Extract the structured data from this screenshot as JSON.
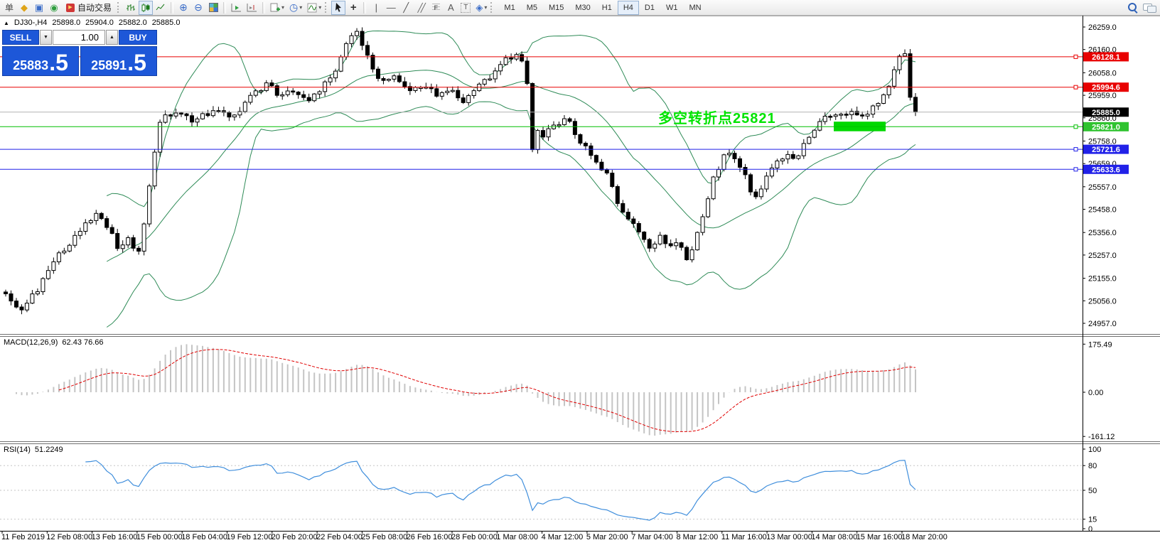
{
  "window": {
    "collapse_arrow": "▲",
    "symbol_period": "DJ30-,H4",
    "ohlc": {
      "open": "25898.0",
      "high": "25904.0",
      "low": "25882.0",
      "close": "25885.0"
    }
  },
  "toolbar": {
    "new_order_label": "单",
    "auto_trading_label": "自动交易",
    "icons": {
      "book": "◆",
      "terminal": "▣",
      "signals": "◉",
      "autoplay": "▶",
      "zoom_in": "⊕",
      "zoom_out": "⊖",
      "profiles": "◷",
      "crosshair": "+",
      "vline": "|",
      "hline": "—",
      "tline": "╱",
      "channel": "╱╱",
      "fibo": "F",
      "text": "A",
      "label": "T",
      "shapes": "◈",
      "caret": "▾",
      "spinner_down": "▼",
      "spinner_up": "▲"
    },
    "timeframes": {
      "items": [
        "M1",
        "M5",
        "M15",
        "M30",
        "H1",
        "H4",
        "D1",
        "W1",
        "MN"
      ],
      "active": "H4"
    }
  },
  "trade_panel": {
    "sell_label": "SELL",
    "buy_label": "BUY",
    "volume": "1.00",
    "sell_price_main": "25883",
    "sell_price_big": ".5",
    "buy_price_main": "25891",
    "buy_price_big": ".5"
  },
  "annotation": {
    "text": "多空转折点25821",
    "color": "#00e400"
  },
  "indicators": {
    "macd": {
      "label": "MACD(12,26,9)",
      "values": "62.43 76.66"
    },
    "rsi": {
      "label": "RSI(14)",
      "value": "51.2249"
    }
  },
  "axes": {
    "price_ticks": [
      "26259.0",
      "26160.0",
      "26058.0",
      "25959.0",
      "25860.0",
      "25758.0",
      "25659.0",
      "25557.0",
      "25458.0",
      "25356.0",
      "25257.0",
      "25155.0",
      "25056.0",
      "24957.0"
    ],
    "macd_ticks": [
      {
        "label": "175.49",
        "value": 175.49
      },
      {
        "label": "0.00",
        "value": 0
      },
      {
        "label": "-161.12",
        "value": -161.12
      }
    ],
    "rsi_ticks": [
      {
        "label": "100",
        "value": 100
      },
      {
        "label": "80",
        "value": 80
      },
      {
        "label": "50",
        "value": 50
      },
      {
        "label": "15",
        "value": 15
      },
      {
        "label": "0",
        "value": 0
      }
    ],
    "time_labels": [
      "11 Feb 2019",
      "12 Feb 08:00",
      "13 Feb 16:00",
      "15 Feb 00:00",
      "18 Feb 04:00",
      "19 Feb 12:00",
      "20 Feb 20:00",
      "22 Feb 04:00",
      "25 Feb 08:00",
      "26 Feb 16:00",
      "28 Feb 00:00",
      "1 Mar 08:00",
      "4 Mar 12:00",
      "5 Mar 20:00",
      "7 Mar 04:00",
      "8 Mar 12:00",
      "11 Mar 16:00",
      "13 Mar 00:00",
      "14 Mar 08:00",
      "15 Mar 16:00",
      "18 Mar 20:00"
    ]
  },
  "levels": [
    {
      "label": "26128.1",
      "price": 26128.1,
      "line_color": "#e80000",
      "badge_bg": "#e80000",
      "handle": true
    },
    {
      "label": "25994.6",
      "price": 25994.6,
      "line_color": "#e80000",
      "badge_bg": "#e80000",
      "handle": true
    },
    {
      "label": "25885.0",
      "price": 25885.0,
      "line_color": "#b4b4b4",
      "badge_bg": "#000000",
      "handle": false
    },
    {
      "label": "25821.0",
      "price": 25821.0,
      "line_color": "#00bf00",
      "badge_bg": "#2fc32f",
      "handle": true
    },
    {
      "label": "25721.6",
      "price": 25721.6,
      "line_color": "#2121e8",
      "badge_bg": "#2121e8",
      "handle": true
    },
    {
      "label": "25633.6",
      "price": 25633.6,
      "line_color": "#2121e8",
      "badge_bg": "#2121e8",
      "handle": true
    }
  ],
  "colors": {
    "trade_panel_blue": "#1d57d8",
    "bollinger_green": "#2E8B57",
    "candle_up": "#ffffff",
    "candle_down": "#000000",
    "macd_histogram": "#c4c4c4",
    "macd_signal": "#e00000",
    "rsi_line": "#3f8edc",
    "level_dashed": "#c6c6c6",
    "highlight_green": "#00d800"
  },
  "chart_data": {
    "type": "candlestick",
    "symbol": "DJ30-",
    "timeframe": "H4",
    "price_axis_range": [
      24957.0,
      26259.0
    ],
    "candle_count": 172,
    "last_close": 25885.0,
    "price_path_anchors": [
      [
        0,
        25080
      ],
      [
        0.017,
        25000
      ],
      [
        0.037,
        25120
      ],
      [
        0.052,
        25230
      ],
      [
        0.068,
        25300
      ],
      [
        0.084,
        25380
      ],
      [
        0.099,
        25430
      ],
      [
        0.111,
        25390
      ],
      [
        0.123,
        25290
      ],
      [
        0.134,
        25330
      ],
      [
        0.146,
        25260
      ],
      [
        0.154,
        25440
      ],
      [
        0.162,
        25680
      ],
      [
        0.17,
        25850
      ],
      [
        0.185,
        25880
      ],
      [
        0.205,
        25850
      ],
      [
        0.228,
        25890
      ],
      [
        0.252,
        25870
      ],
      [
        0.271,
        25960
      ],
      [
        0.287,
        26010
      ],
      [
        0.302,
        25950
      ],
      [
        0.318,
        25980
      ],
      [
        0.334,
        25940
      ],
      [
        0.349,
        26000
      ],
      [
        0.365,
        26090
      ],
      [
        0.377,
        26220
      ],
      [
        0.388,
        26230
      ],
      [
        0.4,
        26100
      ],
      [
        0.412,
        26010
      ],
      [
        0.427,
        26040
      ],
      [
        0.443,
        25980
      ],
      [
        0.459,
        26000
      ],
      [
        0.474,
        25960
      ],
      [
        0.49,
        25990
      ],
      [
        0.502,
        25930
      ],
      [
        0.513,
        25970
      ],
      [
        0.525,
        26010
      ],
      [
        0.537,
        26060
      ],
      [
        0.548,
        26110
      ],
      [
        0.56,
        26130
      ],
      [
        0.572,
        26090
      ],
      [
        0.577,
        25700
      ],
      [
        0.583,
        25800
      ],
      [
        0.591,
        25780
      ],
      [
        0.603,
        25830
      ],
      [
        0.615,
        25860
      ],
      [
        0.627,
        25790
      ],
      [
        0.638,
        25720
      ],
      [
        0.65,
        25660
      ],
      [
        0.662,
        25610
      ],
      [
        0.673,
        25470
      ],
      [
        0.685,
        25400
      ],
      [
        0.697,
        25360
      ],
      [
        0.709,
        25280
      ],
      [
        0.72,
        25340
      ],
      [
        0.732,
        25290
      ],
      [
        0.74,
        25330
      ],
      [
        0.748,
        25230
      ],
      [
        0.755,
        25290
      ],
      [
        0.767,
        25450
      ],
      [
        0.779,
        25610
      ],
      [
        0.791,
        25700
      ],
      [
        0.802,
        25680
      ],
      [
        0.814,
        25590
      ],
      [
        0.822,
        25480
      ],
      [
        0.834,
        25580
      ],
      [
        0.845,
        25650
      ],
      [
        0.857,
        25700
      ],
      [
        0.869,
        25680
      ],
      [
        0.88,
        25760
      ],
      [
        0.892,
        25830
      ],
      [
        0.904,
        25870
      ],
      [
        0.916,
        25860
      ],
      [
        0.927,
        25890
      ],
      [
        0.939,
        25860
      ],
      [
        0.951,
        25900
      ],
      [
        0.963,
        25950
      ],
      [
        0.974,
        26030
      ],
      [
        0.982,
        26120
      ],
      [
        0.988,
        26150
      ],
      [
        0.994,
        25950
      ],
      [
        1,
        25885
      ]
    ],
    "overlays": {
      "bollinger_period": 20,
      "bollinger_deviation": 2
    },
    "macd_settings": {
      "fast": 12,
      "slow": 26,
      "signal": 9
    },
    "rsi_settings": {
      "period": 14
    },
    "rsi_levels": [
      80,
      50,
      15
    ],
    "horizontal_lines": [
      26128.1,
      25994.6,
      25885.0,
      25821.0,
      25721.6,
      25633.6
    ],
    "highlight_box": {
      "x_range": [
        1173,
        1246
      ],
      "price_range": [
        25843,
        25801
      ]
    }
  }
}
